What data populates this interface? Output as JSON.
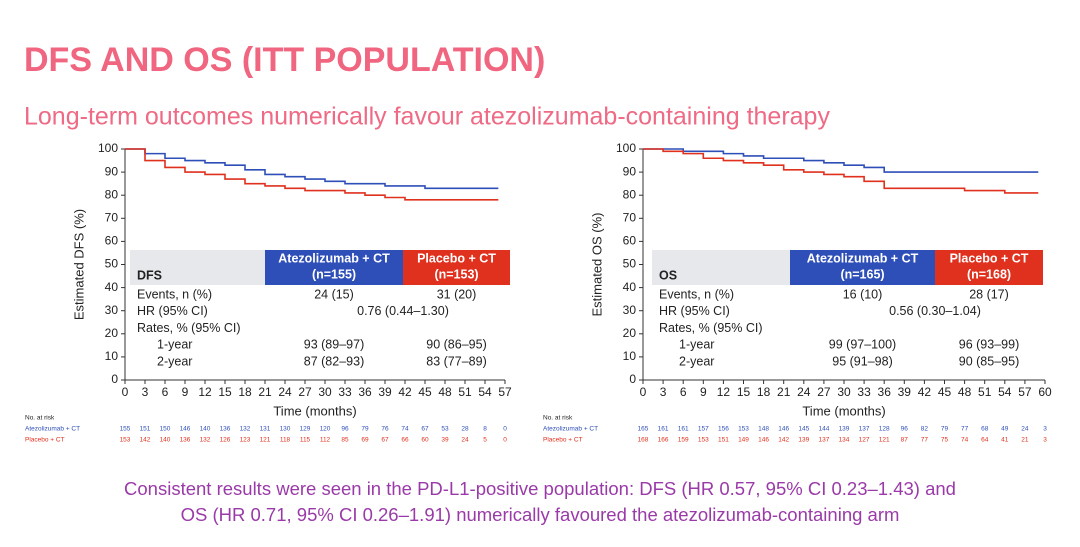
{
  "header": {
    "title": "DFS AND OS (ITT POPULATION)",
    "subtitle": "Long-term outcomes numerically favour atezolizumab-containing therapy"
  },
  "chart_data": [
    {
      "type": "line",
      "step": true,
      "ylabel": "Estimated DFS (%)",
      "xlabel": "Time (months)",
      "xlim": [
        0,
        57
      ],
      "ylim": [
        0,
        100
      ],
      "xticks": [
        0,
        3,
        6,
        9,
        12,
        15,
        18,
        21,
        24,
        27,
        30,
        33,
        36,
        39,
        42,
        45,
        48,
        51,
        54,
        57
      ],
      "yticks": [
        0,
        10,
        20,
        30,
        40,
        50,
        60,
        70,
        80,
        90,
        100
      ],
      "x": [
        0,
        3,
        6,
        9,
        12,
        15,
        18,
        21,
        24,
        27,
        30,
        33,
        36,
        39,
        42,
        45,
        48,
        51,
        54,
        56
      ],
      "series": [
        {
          "name": "Atezolizumab + CT",
          "color": "#2f4fb8",
          "values": [
            100,
            98,
            96,
            95,
            94,
            93,
            91,
            89,
            88,
            87,
            86,
            85,
            85,
            84,
            84,
            83,
            83,
            83,
            83,
            83
          ]
        },
        {
          "name": "Placebo + CT",
          "color": "#e0301e",
          "values": [
            100,
            95,
            92,
            90,
            89,
            87,
            85,
            84,
            83,
            82,
            82,
            81,
            80,
            79,
            78,
            78,
            78,
            78,
            78,
            78
          ]
        }
      ],
      "table": {
        "corner": "DFS",
        "columns": [
          [
            "Atezolizumab + CT",
            "(n=155)"
          ],
          [
            "Placebo + CT",
            "(n=153)"
          ]
        ],
        "rows": [
          [
            "Events, n (%)",
            "24 (15)",
            "31 (20)"
          ],
          [
            "HR (95% CI)",
            "0.76 (0.44–1.30)"
          ],
          [
            "Rates, % (95% CI)"
          ],
          [
            "1-year",
            "93 (89–97)",
            "90 (86–95)"
          ],
          [
            "2-year",
            "87 (82–93)",
            "83 (77–89)"
          ]
        ]
      },
      "risk_table": {
        "title": "No. at risk",
        "rows": [
          {
            "label": "Atezolizumab + CT",
            "values": [
              155,
              151,
              150,
              146,
              140,
              136,
              132,
              131,
              130,
              129,
              120,
              96,
              79,
              76,
              74,
              67,
              53,
              28,
              8,
              0
            ]
          },
          {
            "label": "Placebo + CT",
            "values": [
              153,
              142,
              140,
              136,
              132,
              126,
              123,
              121,
              118,
              115,
              112,
              85,
              69,
              67,
              66,
              60,
              39,
              24,
              5,
              0
            ]
          }
        ]
      }
    },
    {
      "type": "line",
      "step": true,
      "ylabel": "Estimated OS (%)",
      "xlabel": "Time (months)",
      "xlim": [
        0,
        60
      ],
      "ylim": [
        0,
        100
      ],
      "xticks": [
        0,
        3,
        6,
        9,
        12,
        15,
        18,
        21,
        24,
        27,
        30,
        33,
        36,
        39,
        42,
        45,
        48,
        51,
        54,
        57,
        60
      ],
      "yticks": [
        0,
        10,
        20,
        30,
        40,
        50,
        60,
        70,
        80,
        90,
        100
      ],
      "x": [
        0,
        3,
        6,
        9,
        12,
        15,
        18,
        21,
        24,
        27,
        30,
        33,
        36,
        39,
        42,
        45,
        48,
        51,
        54,
        57,
        59
      ],
      "series": [
        {
          "name": "Atezolizumab + CT",
          "color": "#2f4fb8",
          "values": [
            100,
            100,
            99,
            99,
            98,
            97,
            96,
            96,
            95,
            94,
            93,
            92,
            90,
            90,
            90,
            90,
            90,
            90,
            90,
            90,
            90
          ]
        },
        {
          "name": "Placebo + CT",
          "color": "#e0301e",
          "values": [
            100,
            99,
            98,
            96,
            95,
            94,
            93,
            91,
            90,
            89,
            88,
            86,
            83,
            83,
            83,
            83,
            82,
            82,
            81,
            81,
            81
          ]
        }
      ],
      "table": {
        "corner": "OS",
        "columns": [
          [
            "Atezolizumab + CT",
            "(n=165)"
          ],
          [
            "Placebo + CT",
            "(n=168)"
          ]
        ],
        "rows": [
          [
            "Events, n (%)",
            "16 (10)",
            "28 (17)"
          ],
          [
            "HR (95% CI)",
            "0.56 (0.30–1.04)"
          ],
          [
            "Rates, % (95% CI)"
          ],
          [
            "1-year",
            "99 (97–100)",
            "96 (93–99)"
          ],
          [
            "2-year",
            "95 (91–98)",
            "90 (85–95)"
          ]
        ]
      },
      "risk_table": {
        "title": "No. at risk",
        "rows": [
          {
            "label": "Atezolizumab + CT",
            "values": [
              165,
              161,
              161,
              157,
              156,
              153,
              148,
              146,
              145,
              144,
              139,
              137,
              128,
              96,
              82,
              79,
              77,
              68,
              49,
              24,
              3
            ]
          },
          {
            "label": "Placebo + CT",
            "values": [
              168,
              166,
              159,
              153,
              151,
              149,
              146,
              142,
              139,
              137,
              134,
              127,
              121,
              87,
              77,
              75,
              74,
              64,
              41,
              21,
              3
            ]
          }
        ]
      }
    }
  ],
  "footer": [
    "Consistent results were seen in the PD-L1-positive population: DFS (HR 0.57, 95% CI 0.23–1.43) and",
    "OS (HR 0.71, 95% CI 0.26–1.91) numerically favoured the atezolizumab-containing arm"
  ]
}
